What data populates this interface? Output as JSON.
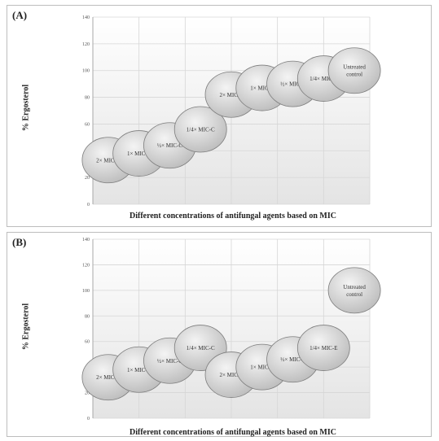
{
  "chart_data": [
    {
      "type": "scatter",
      "panel_label": "(A)",
      "ylabel": "% Ergosterol",
      "xlabel": "Different concentrations of antifungal agents based on MIC",
      "ylim": [
        0,
        140
      ],
      "yticks": [
        0,
        20,
        40,
        60,
        80,
        100,
        120,
        140
      ],
      "grid": true,
      "points": [
        {
          "label": "2× MIC-C",
          "x": 1,
          "y": 33
        },
        {
          "label": "1× MIC-C",
          "x": 2,
          "y": 38
        },
        {
          "label": "½× MIC-C",
          "x": 3,
          "y": 44
        },
        {
          "label": "1/4× MIC-C",
          "x": 4,
          "y": 56
        },
        {
          "label": "2× MIC-E",
          "x": 5,
          "y": 82
        },
        {
          "label": "1× MIC-E",
          "x": 6,
          "y": 87
        },
        {
          "label": "½× MIC-E",
          "x": 7,
          "y": 90
        },
        {
          "label": "1/4× MIC-E",
          "x": 8,
          "y": 94
        },
        {
          "label": "Untreated control",
          "x": 9,
          "y": 100
        }
      ]
    },
    {
      "type": "scatter",
      "panel_label": "(B)",
      "ylabel": "% Ergosterol",
      "xlabel": "Different concentrations of antifungal agents based on MIC",
      "ylim": [
        0,
        140
      ],
      "yticks": [
        0,
        20,
        40,
        60,
        80,
        100,
        120,
        140
      ],
      "grid": true,
      "points": [
        {
          "label": "2× MIC-C",
          "x": 1,
          "y": 32
        },
        {
          "label": "1× MIC-C",
          "x": 2,
          "y": 38
        },
        {
          "label": "½× MIC-C",
          "x": 3,
          "y": 45
        },
        {
          "label": "1/4× MIC-C",
          "x": 4,
          "y": 55
        },
        {
          "label": "2× MIC-E",
          "x": 5,
          "y": 34
        },
        {
          "label": "1× MIC-E",
          "x": 6,
          "y": 40
        },
        {
          "label": "½× MIC-E",
          "x": 7,
          "y": 46
        },
        {
          "label": "1/4× MIC-E",
          "x": 8,
          "y": 55
        },
        {
          "label": "Untreated control",
          "x": 9,
          "y": 100
        }
      ]
    }
  ]
}
